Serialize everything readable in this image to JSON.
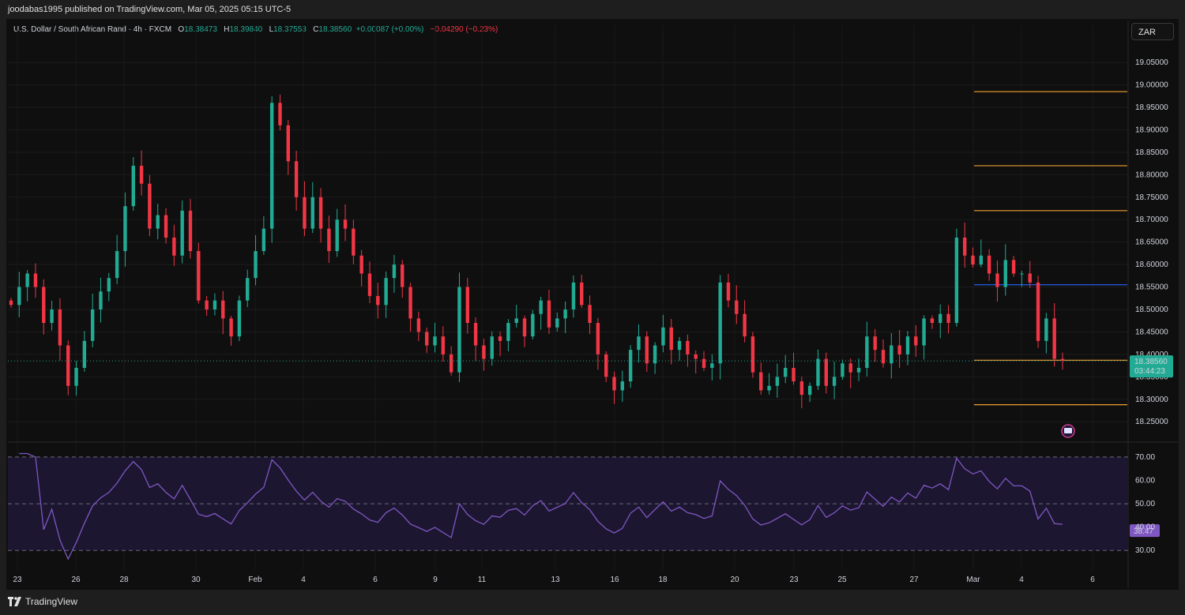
{
  "publisher": "joodabas1995 published on TradingView.com, Mar 05, 2025 05:15 UTC-5",
  "legend": {
    "symbol": "U.S. Dollar / South African Rand · 4h · FXCM",
    "open_label": "O",
    "open": "18.38473",
    "high_label": "H",
    "high": "18.39840",
    "low_label": "L",
    "low": "18.37553",
    "close_label": "C",
    "close": "18.38560",
    "change": "+0.00087 (+0.00%)",
    "day_change": "−0.04290 (−0.23%)"
  },
  "currency_button": "ZAR",
  "brand": "TradingView",
  "colors": {
    "up": "#22ab94",
    "down": "#f23645",
    "level_orange": "#f0a030",
    "level_blue": "#2962ff",
    "rsi": "#7e57c2",
    "rsi_band": "#1c1630"
  },
  "chart_data": [
    {
      "type": "candlestick",
      "title": "U.S. Dollar / South African Rand · 4h · FXCM",
      "ylim": [
        18.21,
        19.08
      ],
      "y_ticks": [
        "19.05000",
        "19.00000",
        "18.95000",
        "18.90000",
        "18.85000",
        "18.80000",
        "18.75000",
        "18.70000",
        "18.65000",
        "18.60000",
        "18.55000",
        "18.50000",
        "18.45000",
        "18.40000",
        "18.35000",
        "18.30000",
        "18.25000"
      ],
      "x_ticks": [
        "23",
        "26",
        "28",
        "30",
        "Feb",
        "4",
        "6",
        "9",
        "11",
        "13",
        "16",
        "18",
        "20",
        "23",
        "25",
        "27",
        "Mar",
        "4",
        "6"
      ],
      "price_label": "18.38560",
      "countdown": "03:44:23",
      "last_price": 18.3856,
      "horizontal_levels": [
        {
          "value": 18.985,
          "color": "orange"
        },
        {
          "value": 18.82,
          "color": "orange"
        },
        {
          "value": 18.72,
          "color": "orange"
        },
        {
          "value": 18.555,
          "color": "blue"
        },
        {
          "value": 18.387,
          "color": "orange"
        },
        {
          "value": 18.288,
          "color": "orange"
        }
      ],
      "close_path": [
        18.51,
        18.55,
        18.58,
        18.55,
        18.47,
        18.5,
        18.42,
        18.33,
        18.37,
        18.43,
        18.5,
        18.54,
        18.57,
        18.63,
        18.73,
        18.82,
        18.78,
        18.68,
        18.71,
        18.66,
        18.62,
        18.72,
        18.63,
        18.52,
        18.5,
        18.52,
        18.48,
        18.44,
        18.52,
        18.57,
        18.63,
        18.68,
        18.96,
        18.91,
        18.83,
        18.75,
        18.68,
        18.75,
        18.68,
        18.63,
        18.7,
        18.68,
        18.62,
        18.58,
        18.53,
        18.51,
        18.57,
        18.6,
        18.55,
        18.48,
        18.45,
        18.42,
        18.44,
        18.4,
        18.36,
        18.55,
        18.47,
        18.42,
        18.39,
        18.44,
        18.43,
        18.47,
        18.48,
        18.44,
        18.49,
        18.52,
        18.46,
        18.48,
        18.5,
        18.56,
        18.51,
        18.47,
        18.4,
        18.35,
        18.32,
        18.34,
        18.41,
        18.44,
        18.38,
        18.42,
        18.46,
        18.41,
        18.43,
        18.4,
        18.39,
        18.37,
        18.38,
        18.56,
        18.52,
        18.49,
        18.44,
        18.36,
        18.32,
        18.33,
        18.35,
        18.37,
        18.34,
        18.31,
        18.33,
        18.39,
        18.33,
        18.35,
        18.38,
        18.36,
        18.37,
        18.44,
        18.41,
        18.38,
        18.42,
        18.4,
        18.44,
        18.42,
        18.48,
        18.47,
        18.49,
        18.47,
        18.66,
        18.62,
        18.6,
        18.62,
        18.58,
        18.55,
        18.61,
        18.58,
        18.58,
        18.56,
        18.43,
        18.48,
        18.39,
        18.3856
      ],
      "rsi": {
        "label": "38.47",
        "ylim": [
          25,
          72
        ],
        "levels": [
          70,
          50,
          30
        ],
        "y_ticks": [
          "70.00",
          "60.00",
          "50.00",
          "40.00",
          "30.00"
        ]
      }
    }
  ]
}
